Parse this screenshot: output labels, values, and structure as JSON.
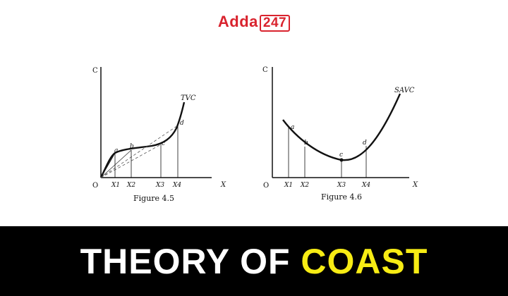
{
  "logo": {
    "text": "Adda",
    "number": "247"
  },
  "figure_left": {
    "caption": "Figure 4.5",
    "y_axis": "C",
    "x_axis": "X",
    "origin": "O",
    "curve_label": "TVC",
    "points": [
      "a",
      "b",
      "c",
      "d"
    ],
    "x_ticks": [
      "X1",
      "X2",
      "X3",
      "X4"
    ]
  },
  "figure_right": {
    "caption": "Figure 4.6",
    "y_axis": "C",
    "x_axis": "X",
    "origin": "O",
    "curve_label": "SAVC",
    "points": [
      "a",
      "b",
      "c",
      "d"
    ],
    "x_ticks": [
      "X1",
      "X2",
      "X3",
      "X4"
    ]
  },
  "banner": {
    "part1": "THEORY OF ",
    "part2": "COAST"
  },
  "colors": {
    "brand_red": "#d9232e",
    "banner_bg": "#000000",
    "highlight_yellow": "#f7ec14"
  }
}
